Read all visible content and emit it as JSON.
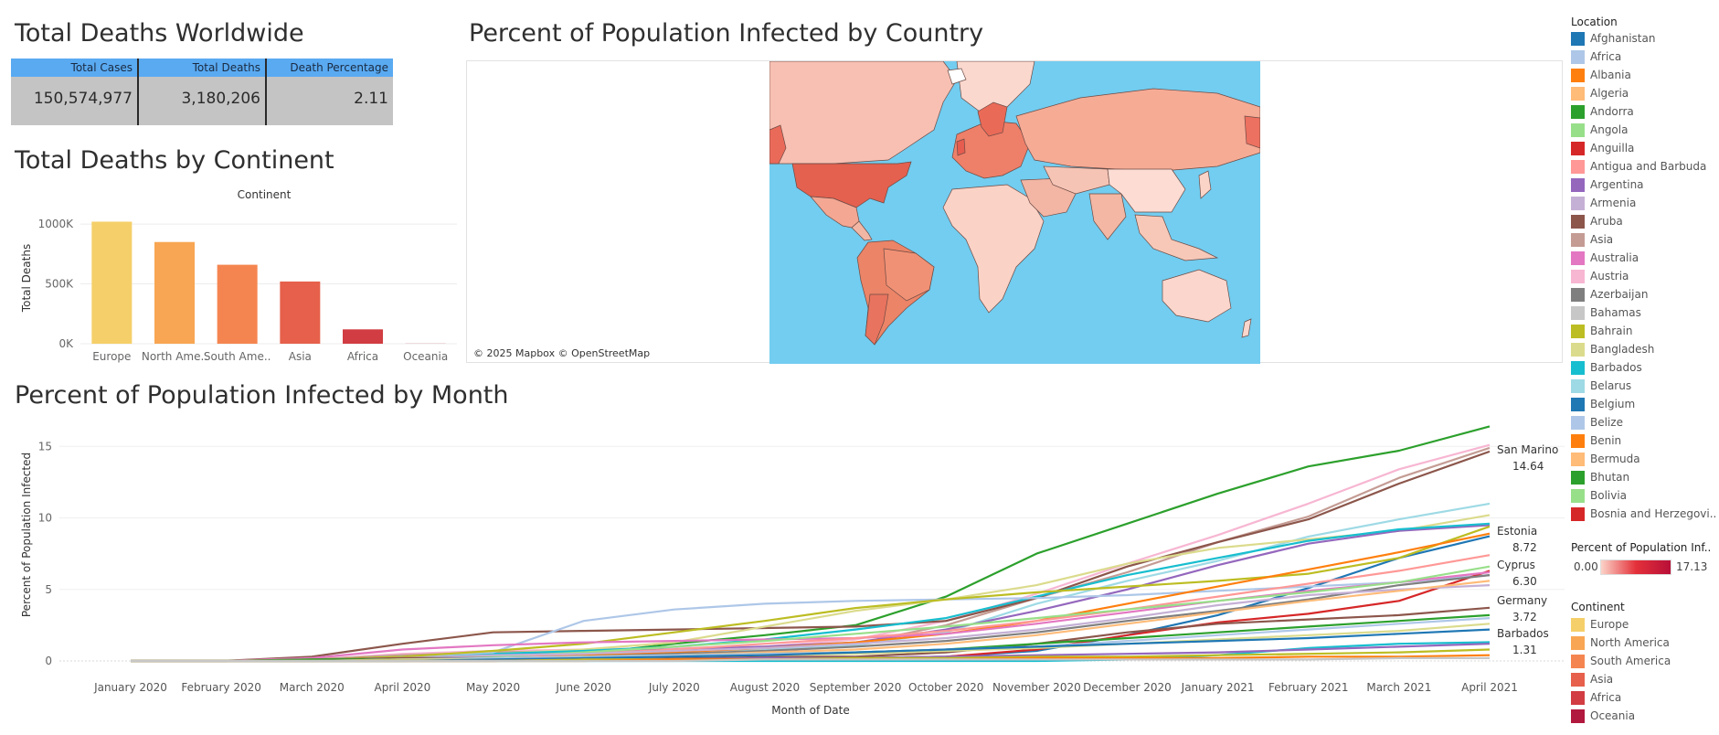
{
  "kpi": {
    "title": "Total Deaths Worldwide",
    "headers": [
      "Total Cases",
      "Total Deaths",
      "Death Percentage"
    ],
    "values": [
      "150,574,977",
      "3,180,206",
      "2.11"
    ],
    "header_color": "#5aaaf2",
    "cell_color": "#c4c4c4"
  },
  "map": {
    "title": "Percent of Population Infected by Country",
    "credit": "© 2025 Mapbox © OpenStreetMap",
    "ocean_color": "#72cdf0"
  },
  "legend": {
    "location_title": "Location",
    "locations": [
      {
        "label": "Afghanistan",
        "color": "#1f77b4"
      },
      {
        "label": "Africa",
        "color": "#aec7e8"
      },
      {
        "label": "Albania",
        "color": "#ff7f0e"
      },
      {
        "label": "Algeria",
        "color": "#ffbb78"
      },
      {
        "label": "Andorra",
        "color": "#2ca02c"
      },
      {
        "label": "Angola",
        "color": "#98df8a"
      },
      {
        "label": "Anguilla",
        "color": "#d62728"
      },
      {
        "label": "Antigua and Barbuda",
        "color": "#ff9896"
      },
      {
        "label": "Argentina",
        "color": "#9467bd"
      },
      {
        "label": "Armenia",
        "color": "#c5b0d5"
      },
      {
        "label": "Aruba",
        "color": "#8c564b"
      },
      {
        "label": "Asia",
        "color": "#c49c94"
      },
      {
        "label": "Australia",
        "color": "#e377c2"
      },
      {
        "label": "Austria",
        "color": "#f7b6d2"
      },
      {
        "label": "Azerbaijan",
        "color": "#7f7f7f"
      },
      {
        "label": "Bahamas",
        "color": "#c7c7c7"
      },
      {
        "label": "Bahrain",
        "color": "#bcbd22"
      },
      {
        "label": "Bangladesh",
        "color": "#dbdb8d"
      },
      {
        "label": "Barbados",
        "color": "#17becf"
      },
      {
        "label": "Belarus",
        "color": "#9edae5"
      },
      {
        "label": "Belgium",
        "color": "#1f77b4"
      },
      {
        "label": "Belize",
        "color": "#aec7e8"
      },
      {
        "label": "Benin",
        "color": "#ff7f0e"
      },
      {
        "label": "Bermuda",
        "color": "#ffbb78"
      },
      {
        "label": "Bhutan",
        "color": "#2ca02c"
      },
      {
        "label": "Bolivia",
        "color": "#98df8a"
      },
      {
        "label": "Bosnia and Herzegovi..",
        "color": "#d62728"
      }
    ],
    "gradient_title": "Percent of Population Inf..",
    "gradient_min": "0.00",
    "gradient_max": "17.13",
    "continent_title": "Continent",
    "continents": [
      {
        "label": "Europe",
        "color": "#f5cf69"
      },
      {
        "label": "North America",
        "color": "#f8a653"
      },
      {
        "label": "South America",
        "color": "#f58550"
      },
      {
        "label": "Asia",
        "color": "#e6604b"
      },
      {
        "label": "Africa",
        "color": "#d13d42"
      },
      {
        "label": "Oceania",
        "color": "#b1183d"
      }
    ]
  },
  "chart_data": [
    {
      "type": "bar",
      "title": "Total Deaths by Continent",
      "header": "Continent",
      "ylabel": "Total Deaths",
      "xlabel": "",
      "ylim": [
        0,
        1100000
      ],
      "yticks": [
        0,
        500000,
        1000000
      ],
      "ytick_labels": [
        "0K",
        "500K",
        "1000K"
      ],
      "categories": [
        "Europe",
        "North Ame..",
        "South Ame..",
        "Asia",
        "Africa",
        "Oceania"
      ],
      "values": [
        1020000,
        850000,
        660000,
        520000,
        120000,
        1000
      ],
      "colors": [
        "#f5cf69",
        "#f8a653",
        "#f58550",
        "#e6604b",
        "#d13d42",
        "#b1183d"
      ],
      "grid": true
    },
    {
      "type": "line",
      "title": "Percent of Population Infected by Month",
      "xlabel": "Month of Date",
      "ylabel": "Percent of Population Infected",
      "ylim": [
        0,
        17
      ],
      "yticks": [
        0,
        5,
        10,
        15
      ],
      "x": [
        "January 2020",
        "February 2020",
        "March 2020",
        "April 2020",
        "May 2020",
        "June 2020",
        "July 2020",
        "August 2020",
        "September 2020",
        "October 2020",
        "November 2020",
        "December 2020",
        "January 2021",
        "February 2021",
        "March 2021",
        "April 2021"
      ],
      "series": [
        {
          "color": "#2ca02c",
          "values": [
            0,
            0,
            0.1,
            0.3,
            0.4,
            0.5,
            1.2,
            1.8,
            2.5,
            4.5,
            7.5,
            9.6,
            11.7,
            13.6,
            14.7,
            16.4
          ]
        },
        {
          "color": "#f7b6d2",
          "values": [
            0,
            0,
            0.1,
            0.5,
            0.7,
            0.8,
            0.9,
            1.0,
            1.5,
            2.8,
            4.7,
            6.8,
            8.8,
            11.0,
            13.4,
            15.1
          ]
        },
        {
          "color": "#c49c94",
          "values": [
            0,
            0,
            0.1,
            0.4,
            0.6,
            0.7,
            0.8,
            0.9,
            1.2,
            2.5,
            4.4,
            6.2,
            8.3,
            10.1,
            12.8,
            14.9
          ]
        },
        {
          "name": "San Marino",
          "color": "#8c564b",
          "values": [
            0,
            0,
            0.3,
            1.2,
            2.0,
            2.1,
            2.2,
            2.3,
            2.4,
            2.8,
            4.4,
            6.6,
            8.3,
            9.9,
            12.4,
            14.64
          ]
        },
        {
          "color": "#9edae5",
          "values": [
            0,
            0,
            0.1,
            0.3,
            0.5,
            0.6,
            0.7,
            0.8,
            1.1,
            2.0,
            4.0,
            5.6,
            7.0,
            8.7,
            9.9,
            11.0
          ]
        },
        {
          "color": "#dbdb8d",
          "values": [
            0,
            0,
            0.1,
            0.3,
            0.5,
            0.8,
            1.3,
            2.4,
            3.5,
            4.3,
            5.3,
            6.8,
            7.9,
            8.5,
            9.1,
            10.2
          ]
        },
        {
          "color": "#9467bd",
          "values": [
            0,
            0,
            0.1,
            0.2,
            0.4,
            0.6,
            0.8,
            1.0,
            1.3,
            2.2,
            3.5,
            5.0,
            6.7,
            8.2,
            9.1,
            9.5
          ]
        },
        {
          "name": "Estonia",
          "color": "#1f77b4",
          "values": [
            0,
            0,
            0.1,
            0.1,
            0.1,
            0.1,
            0.1,
            0.2,
            0.2,
            0.3,
            0.7,
            1.8,
            3.2,
            5.1,
            7.2,
            8.72
          ]
        },
        {
          "color": "#17becf",
          "values": [
            0,
            0,
            0.1,
            0.3,
            0.5,
            0.7,
            1.0,
            1.5,
            2.2,
            3.0,
            4.5,
            6.0,
            7.2,
            8.4,
            9.2,
            9.6
          ]
        },
        {
          "color": "#aec7e8",
          "values": [
            0,
            0,
            0.1,
            0.3,
            0.6,
            2.8,
            3.6,
            4.0,
            4.2,
            4.3,
            4.4,
            4.6,
            4.9,
            5.2,
            5.5,
            6.0
          ]
        },
        {
          "color": "#bcbd22",
          "values": [
            0,
            0,
            0.1,
            0.3,
            0.7,
            1.2,
            2.0,
            2.8,
            3.7,
            4.3,
            4.8,
            5.2,
            5.6,
            6.1,
            7.2,
            9.4
          ]
        },
        {
          "name": "Cyprus",
          "color": "#d62728",
          "values": [
            0,
            0,
            0.1,
            0.1,
            0.1,
            0.1,
            0.1,
            0.1,
            0.2,
            0.3,
            0.8,
            1.8,
            2.7,
            3.3,
            4.2,
            6.3
          ]
        },
        {
          "color": "#ff7f0e",
          "values": [
            0,
            0,
            0.1,
            0.2,
            0.3,
            0.4,
            0.6,
            0.9,
            1.3,
            1.9,
            2.8,
            4.0,
            5.2,
            6.4,
            7.6,
            8.9
          ]
        },
        {
          "color": "#e377c2",
          "values": [
            0,
            0,
            0.2,
            0.8,
            1.1,
            1.3,
            1.4,
            1.5,
            1.6,
            1.9,
            2.6,
            3.4,
            4.2,
            4.9,
            5.5,
            6.2
          ]
        },
        {
          "color": "#ff9896",
          "values": [
            0,
            0,
            0.1,
            0.2,
            0.3,
            0.5,
            0.8,
            1.2,
            1.6,
            2.1,
            2.8,
            3.6,
            4.5,
            5.4,
            6.3,
            7.4
          ]
        },
        {
          "color": "#98df8a",
          "values": [
            0,
            0,
            0.1,
            0.2,
            0.3,
            0.6,
            1.0,
            1.4,
            1.9,
            2.4,
            3.0,
            3.6,
            4.2,
            4.8,
            5.5,
            6.6
          ]
        },
        {
          "color": "#7f7f7f",
          "values": [
            0,
            0,
            0.1,
            0.1,
            0.2,
            0.3,
            0.5,
            0.7,
            1.0,
            1.4,
            2.0,
            2.8,
            3.5,
            4.3,
            5.3,
            6.0
          ]
        },
        {
          "color": "#c5b0d5",
          "values": [
            0,
            0,
            0.1,
            0.2,
            0.4,
            0.5,
            0.7,
            0.9,
            1.2,
            1.6,
            2.2,
            3.0,
            3.9,
            4.6,
            5.0,
            5.3
          ]
        },
        {
          "color": "#ffbb78",
          "values": [
            0,
            0,
            0.1,
            0.1,
            0.2,
            0.3,
            0.4,
            0.6,
            0.8,
            1.2,
            1.8,
            2.6,
            3.4,
            4.2,
            4.9,
            5.6
          ]
        },
        {
          "name": "Germany",
          "color": "#8c564b",
          "values": [
            0,
            0,
            0.1,
            0.2,
            0.2,
            0.2,
            0.2,
            0.3,
            0.3,
            0.6,
            1.2,
            2.0,
            2.6,
            2.9,
            3.2,
            3.72
          ]
        },
        {
          "color": "#2ca02c",
          "values": [
            0,
            0,
            0.1,
            0.1,
            0.2,
            0.3,
            0.4,
            0.5,
            0.6,
            0.8,
            1.2,
            1.6,
            2.0,
            2.4,
            2.8,
            3.2
          ]
        },
        {
          "color": "#aec7e8",
          "values": [
            0,
            0,
            0.0,
            0.1,
            0.2,
            0.3,
            0.4,
            0.5,
            0.6,
            0.8,
            1.0,
            1.4,
            1.8,
            2.2,
            2.6,
            3.0
          ]
        },
        {
          "color": "#dbdb8d",
          "values": [
            0,
            0,
            0.0,
            0.1,
            0.1,
            0.2,
            0.3,
            0.4,
            0.5,
            0.7,
            0.9,
            1.2,
            1.5,
            1.8,
            2.1,
            2.6
          ]
        },
        {
          "color": "#1f77b4",
          "values": [
            0,
            0,
            0.0,
            0.0,
            0.1,
            0.2,
            0.3,
            0.4,
            0.6,
            0.8,
            1.0,
            1.2,
            1.4,
            1.6,
            1.9,
            2.2
          ]
        },
        {
          "name": "Barbados",
          "color": "#17becf",
          "values": [
            0,
            0,
            0.0,
            0.0,
            0.0,
            0.0,
            0.0,
            0.0,
            0.0,
            0.0,
            0.0,
            0.1,
            0.4,
            0.9,
            1.2,
            1.31
          ]
        },
        {
          "color": "#9467bd",
          "values": [
            0,
            0,
            0.0,
            0.0,
            0.0,
            0.1,
            0.1,
            0.2,
            0.2,
            0.3,
            0.4,
            0.5,
            0.6,
            0.8,
            1.0,
            1.2
          ]
        },
        {
          "color": "#bcbd22",
          "values": [
            0,
            0,
            0.0,
            0.0,
            0.0,
            0.1,
            0.1,
            0.1,
            0.2,
            0.2,
            0.3,
            0.3,
            0.4,
            0.5,
            0.6,
            0.8
          ]
        },
        {
          "color": "#ff7f0e",
          "values": [
            0,
            0,
            0.0,
            0.0,
            0.0,
            0.0,
            0.1,
            0.1,
            0.1,
            0.1,
            0.2,
            0.2,
            0.2,
            0.3,
            0.3,
            0.4
          ]
        },
        {
          "color": "#c7c7c7",
          "values": [
            0,
            0,
            0.0,
            0.0,
            0.0,
            0.0,
            0.0,
            0.1,
            0.1,
            0.1,
            0.1,
            0.1,
            0.1,
            0.1,
            0.2,
            0.2
          ]
        }
      ],
      "end_labels": [
        {
          "name": "San Marino",
          "value": "14.64"
        },
        {
          "name": "Estonia",
          "value": "8.72"
        },
        {
          "name": "Cyprus",
          "value": "6.30"
        },
        {
          "name": "Germany",
          "value": "3.72"
        },
        {
          "name": "Barbados",
          "value": "1.31"
        }
      ],
      "grid": true
    }
  ]
}
